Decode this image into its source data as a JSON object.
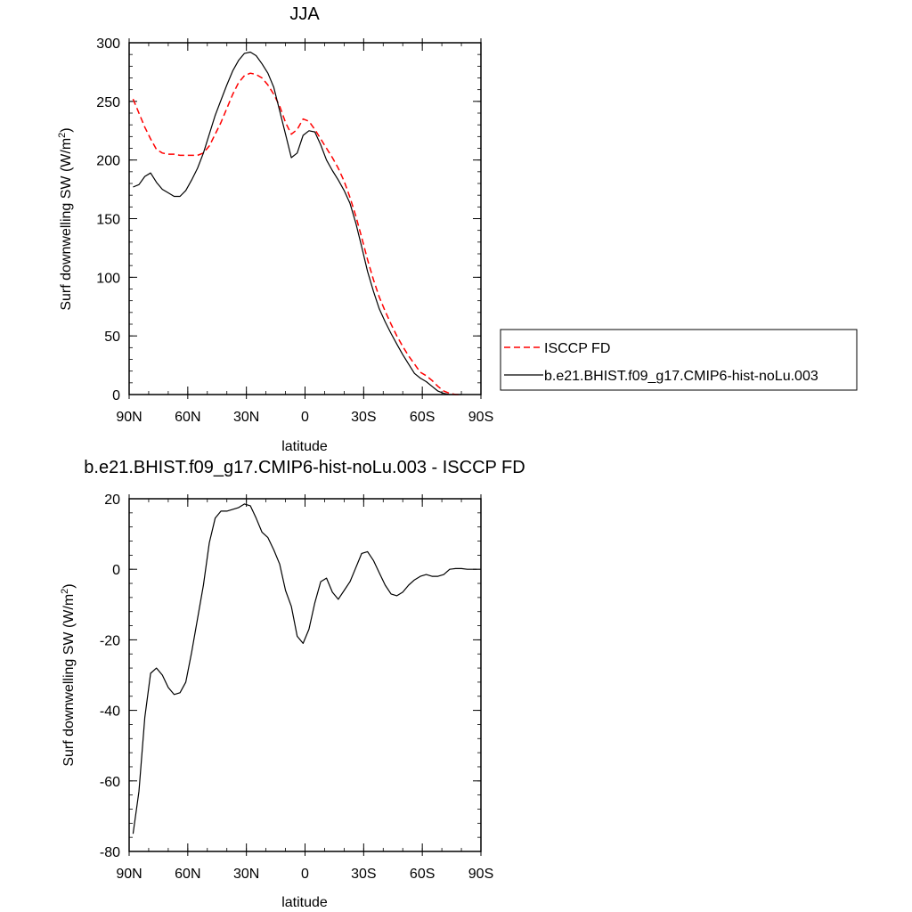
{
  "chart_data": [
    {
      "type": "line",
      "title": "JJA",
      "xlabel": "latitude",
      "ylabel": "Surf downwelling SW (W/m",
      "ylabel_sup": "2",
      "ylabel_close": ")",
      "xlim": [
        90,
        -90
      ],
      "ylim": [
        0,
        300
      ],
      "xticks": [
        {
          "v": 90,
          "label": "90N"
        },
        {
          "v": 60,
          "label": "60N"
        },
        {
          "v": 30,
          "label": "30N"
        },
        {
          "v": 0,
          "label": "0"
        },
        {
          "v": -30,
          "label": "30S"
        },
        {
          "v": -60,
          "label": "60S"
        },
        {
          "v": -90,
          "label": "90S"
        }
      ],
      "yticks": [
        {
          "v": 0,
          "label": "0"
        },
        {
          "v": 50,
          "label": "50"
        },
        {
          "v": 100,
          "label": "100"
        },
        {
          "v": 150,
          "label": "150"
        },
        {
          "v": 200,
          "label": "200"
        },
        {
          "v": 250,
          "label": "250"
        },
        {
          "v": 300,
          "label": "300"
        }
      ],
      "legend": {
        "placement": "right",
        "entries": [
          "ISCCP FD",
          "b.e21.BHIST.f09_g17.CMIP6-hist-noLu.003"
        ]
      },
      "series": [
        {
          "name": "ISCCP FD",
          "color": "#ff0000",
          "dash": true,
          "x": [
            88,
            85,
            82,
            79,
            76,
            73,
            70,
            67,
            64,
            61,
            58,
            55,
            52,
            49,
            46,
            43,
            40,
            37,
            34,
            31,
            28,
            25,
            22,
            19,
            16,
            13,
            10,
            7,
            4,
            1,
            -2,
            -5,
            -8,
            -11,
            -14,
            -17,
            -20,
            -23,
            -26,
            -29,
            -32,
            -35,
            -38,
            -41,
            -44,
            -47,
            -50,
            -53,
            -56,
            -59,
            -62,
            -65,
            -68,
            -71,
            -74,
            -77,
            -80
          ],
          "y": [
            252,
            240,
            228,
            218,
            209,
            206,
            205,
            205,
            204,
            204,
            204,
            204,
            206,
            212,
            222,
            232,
            244,
            256,
            266,
            272,
            274,
            273,
            270,
            264,
            256,
            246,
            232,
            222,
            226,
            235,
            233,
            226,
            218,
            210,
            202,
            193,
            182,
            168,
            152,
            134,
            115,
            98,
            83,
            71,
            60,
            50,
            41,
            33,
            26,
            19,
            16,
            12,
            7,
            3,
            1,
            0,
            0
          ]
        },
        {
          "name": "b.e21.BHIST.f09_g17.CMIP6-hist-noLu.003",
          "color": "#000000",
          "dash": false,
          "x": [
            88,
            85,
            82,
            79,
            76,
            73,
            70,
            67,
            64,
            61,
            58,
            55,
            52,
            49,
            46,
            43,
            40,
            37,
            34,
            31,
            28,
            25,
            22,
            19,
            16,
            13,
            10,
            7,
            4,
            1,
            -2,
            -5,
            -8,
            -11,
            -14,
            -17,
            -20,
            -23,
            -26,
            -29,
            -32,
            -35,
            -38,
            -41,
            -44,
            -47,
            -50,
            -53,
            -56,
            -59,
            -62,
            -65,
            -68,
            -71,
            -74,
            -77,
            -80
          ],
          "y": [
            177,
            179,
            186,
            189,
            181,
            175,
            172,
            169,
            169,
            174,
            183,
            193,
            206,
            222,
            238,
            251,
            264,
            276,
            285,
            291,
            292,
            289,
            282,
            274,
            262,
            242,
            222,
            202,
            206,
            221,
            225,
            224,
            213,
            200,
            191,
            183,
            174,
            163,
            146,
            126,
            105,
            88,
            73,
            62,
            52,
            43,
            34,
            26,
            18,
            14,
            11,
            7,
            3,
            1,
            0,
            0,
            0
          ]
        }
      ]
    },
    {
      "type": "line",
      "title": "b.e21.BHIST.f09_g17.CMIP6-hist-noLu.003 - ISCCP FD",
      "xlabel": "latitude",
      "ylabel": "Surf downwelling SW (W/m",
      "ylabel_sup": "2",
      "ylabel_close": ")",
      "xlim": [
        90,
        -90
      ],
      "ylim": [
        -80,
        20
      ],
      "xticks": [
        {
          "v": 90,
          "label": "90N"
        },
        {
          "v": 60,
          "label": "60N"
        },
        {
          "v": 30,
          "label": "30N"
        },
        {
          "v": 0,
          "label": "0"
        },
        {
          "v": -30,
          "label": "30S"
        },
        {
          "v": -60,
          "label": "60S"
        },
        {
          "v": -90,
          "label": "90S"
        }
      ],
      "yticks": [
        {
          "v": 20,
          "label": "20"
        },
        {
          "v": 0,
          "label": "0"
        },
        {
          "v": -20,
          "label": "-20"
        },
        {
          "v": -40,
          "label": "-40"
        },
        {
          "v": -60,
          "label": "-60"
        },
        {
          "v": -80,
          "label": "-80"
        }
      ],
      "series": [
        {
          "color": "#000000",
          "dash": false,
          "x": [
            88,
            85,
            82,
            79,
            76,
            73,
            70,
            67,
            64,
            61,
            58,
            55,
            52,
            49,
            46,
            43,
            40,
            37,
            34,
            31,
            28,
            25,
            22,
            19,
            16,
            13,
            10,
            7,
            4,
            1,
            -2,
            -5,
            -8,
            -11,
            -14,
            -17,
            -20,
            -23,
            -26,
            -29,
            -32,
            -35,
            -38,
            -41,
            -44,
            -47,
            -50,
            -53,
            -56,
            -59,
            -62,
            -65,
            -68,
            -71,
            -74,
            -77,
            -80,
            -83,
            -86,
            -88
          ],
          "y": [
            -75,
            -63,
            -42,
            -29.5,
            -28,
            -30,
            -33.5,
            -35.5,
            -35,
            -32,
            -23.5,
            -14,
            -4.5,
            7.5,
            14.5,
            16.5,
            16.5,
            17,
            17.5,
            18.5,
            18,
            14.5,
            10.5,
            9,
            5.5,
            1.5,
            -6,
            -10.5,
            -19,
            -21,
            -17,
            -9.5,
            -3.5,
            -2.5,
            -6.5,
            -8.5,
            -6,
            -3.5,
            0.5,
            4.5,
            5,
            2.5,
            -1,
            -4.5,
            -7,
            -7.5,
            -6.5,
            -4.5,
            -3,
            -2,
            -1.5,
            -2,
            -2,
            -1.5,
            0,
            0.2,
            0.2,
            0,
            0,
            0
          ]
        }
      ]
    }
  ]
}
